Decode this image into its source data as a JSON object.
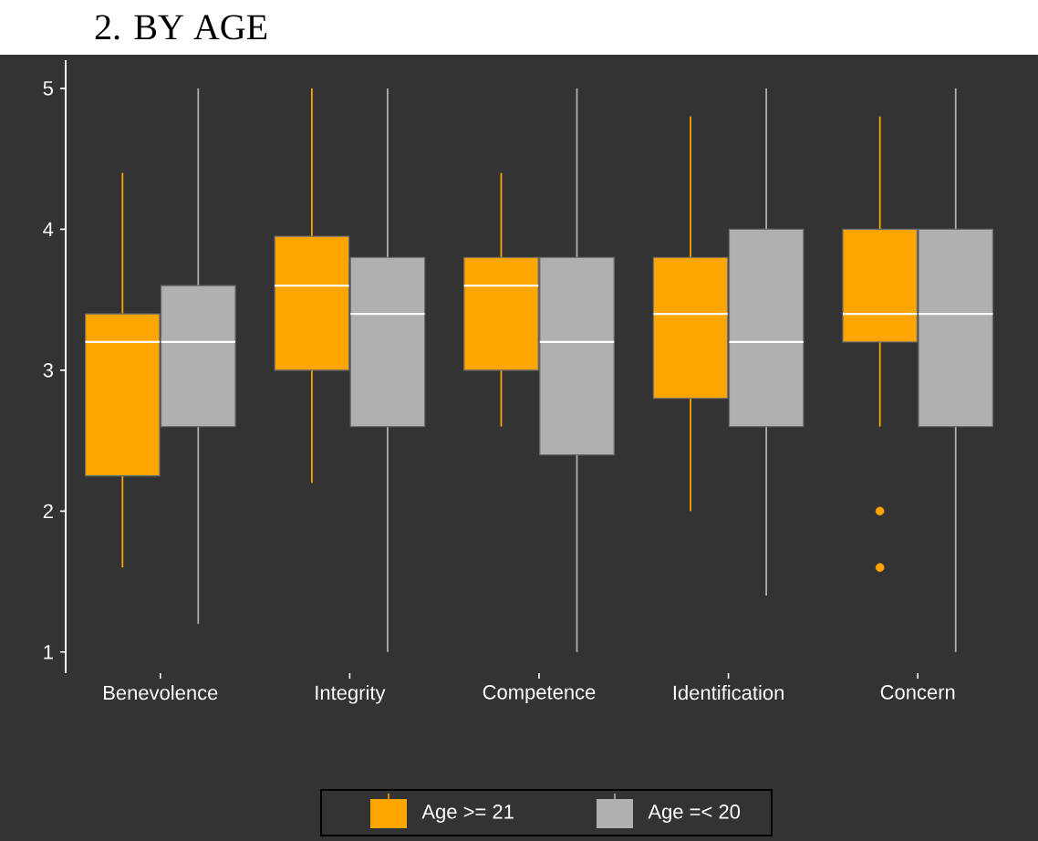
{
  "chart_data": {
    "type": "box",
    "title": "2. BY AGE",
    "categories": [
      "Benevolence",
      "Integrity",
      "Competence",
      "Identification",
      "Concern"
    ],
    "series": [
      {
        "name": "Age >= 21",
        "color": "#ffa500",
        "boxes": [
          {
            "low": 1.6,
            "q1": 2.25,
            "median": 3.2,
            "q3": 3.4,
            "high": 4.4
          },
          {
            "low": 2.2,
            "q1": 3.0,
            "median": 3.6,
            "q3": 3.95,
            "high": 5.0
          },
          {
            "low": 2.6,
            "q1": 3.0,
            "median": 3.6,
            "q3": 3.8,
            "high": 4.4
          },
          {
            "low": 2.0,
            "q1": 2.8,
            "median": 3.4,
            "q3": 3.8,
            "high": 4.8
          },
          {
            "low": 2.6,
            "q1": 3.2,
            "median": 3.4,
            "q3": 4.0,
            "high": 4.8,
            "outliers": [
              2.0,
              1.6
            ]
          }
        ]
      },
      {
        "name": "Age =< 20",
        "color": "#b0b0b0",
        "boxes": [
          {
            "low": 1.2,
            "q1": 2.6,
            "median": 3.2,
            "q3": 3.6,
            "high": 5.0
          },
          {
            "low": 1.0,
            "q1": 2.6,
            "median": 3.4,
            "q3": 3.8,
            "high": 5.0
          },
          {
            "low": 1.0,
            "q1": 2.4,
            "median": 3.2,
            "q3": 3.8,
            "high": 5.0
          },
          {
            "low": 1.4,
            "q1": 2.6,
            "median": 3.2,
            "q3": 4.0,
            "high": 5.0
          },
          {
            "low": 1.0,
            "q1": 2.6,
            "median": 3.4,
            "q3": 4.0,
            "high": 5.0
          }
        ]
      }
    ],
    "ylim": [
      0.85,
      5.2
    ],
    "yticks": [
      1,
      2,
      3,
      4,
      5
    ],
    "legend": "bottom"
  }
}
